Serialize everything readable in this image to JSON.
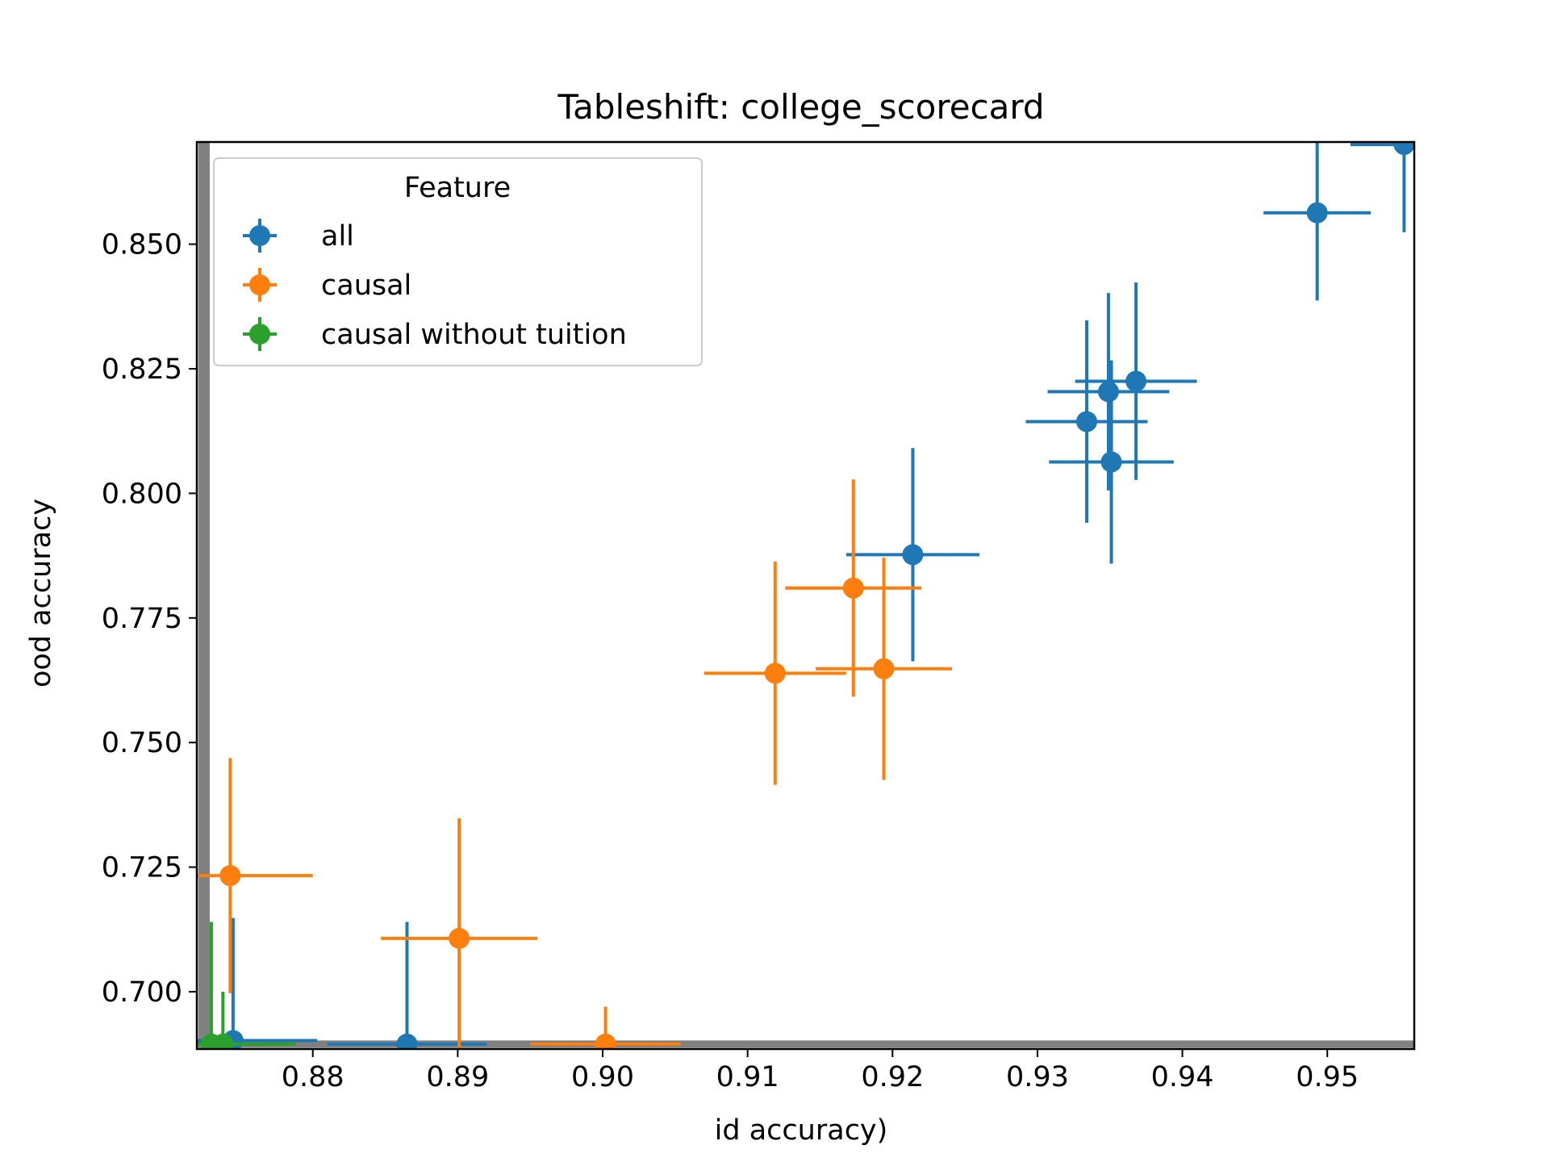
{
  "chart_data": {
    "type": "scatter",
    "title": "Tableshift: college_scorecard",
    "xlabel": "id accuracy)",
    "ylabel": "ood accuracy",
    "xlim": [
      0.872,
      0.956
    ],
    "ylim": [
      0.6885,
      0.8705
    ],
    "xticks": [
      0.88,
      0.89,
      0.9,
      0.91,
      0.92,
      0.93,
      0.94,
      0.95
    ],
    "xtick_labels": [
      "0.88",
      "0.89",
      "0.90",
      "0.91",
      "0.92",
      "0.93",
      "0.94",
      "0.95"
    ],
    "yticks": [
      0.7,
      0.725,
      0.75,
      0.775,
      0.8,
      0.825,
      0.85
    ],
    "ytick_labels": [
      "0.700",
      "0.725",
      "0.750",
      "0.775",
      "0.800",
      "0.825",
      "0.850"
    ],
    "grid": false,
    "legend": {
      "title": "Feature",
      "placement": "top-left"
    },
    "reference_lines": {
      "x": 0.8725,
      "y": 0.6895,
      "color": "#808080"
    },
    "series": [
      {
        "name": "all",
        "color": "#1f77b4",
        "points": [
          {
            "x": 0.9553,
            "y": 0.87,
            "xerr": 0.0037,
            "yerr": 0.0176
          },
          {
            "x": 0.9493,
            "y": 0.8563,
            "xerr": 0.0037,
            "yerr": 0.0176
          },
          {
            "x": 0.9368,
            "y": 0.8225,
            "xerr": 0.0042,
            "yerr": 0.0198
          },
          {
            "x": 0.9349,
            "y": 0.8204,
            "xerr": 0.0042,
            "yerr": 0.0198
          },
          {
            "x": 0.9334,
            "y": 0.8144,
            "xerr": 0.0042,
            "yerr": 0.0203
          },
          {
            "x": 0.9351,
            "y": 0.8063,
            "xerr": 0.0043,
            "yerr": 0.0204
          },
          {
            "x": 0.9214,
            "y": 0.7877,
            "xerr": 0.0046,
            "yerr": 0.0214
          },
          {
            "x": 0.8745,
            "y": 0.6902,
            "xerr": 0.0058,
            "yerr": 0.0246
          },
          {
            "x": 0.8865,
            "y": 0.6895,
            "xerr": 0.0055,
            "yerr": 0.0245
          }
        ]
      },
      {
        "name": "causal",
        "color": "#ff7f0e",
        "points": [
          {
            "x": 0.9173,
            "y": 0.781,
            "xerr": 0.0047,
            "yerr": 0.0218
          },
          {
            "x": 0.9119,
            "y": 0.7639,
            "xerr": 0.0049,
            "yerr": 0.0224
          },
          {
            "x": 0.9194,
            "y": 0.7648,
            "xerr": 0.0047,
            "yerr": 0.0223
          },
          {
            "x": 0.8743,
            "y": 0.7233,
            "xerr": 0.0057,
            "yerr": 0.0236
          },
          {
            "x": 0.8901,
            "y": 0.7107,
            "xerr": 0.0054,
            "yerr": 0.0241
          },
          {
            "x": 0.9002,
            "y": 0.6895,
            "xerr": 0.0052,
            "yerr": 0.0075
          }
        ]
      },
      {
        "name": "causal without tuition",
        "color": "#2ca02c",
        "points": [
          {
            "x": 0.873,
            "y": 0.6895,
            "xerr": 0.0058,
            "yerr": 0.0245
          },
          {
            "x": 0.8738,
            "y": 0.6895,
            "xerr": 0.004,
            "yerr": 0.0105
          }
        ]
      }
    ]
  }
}
